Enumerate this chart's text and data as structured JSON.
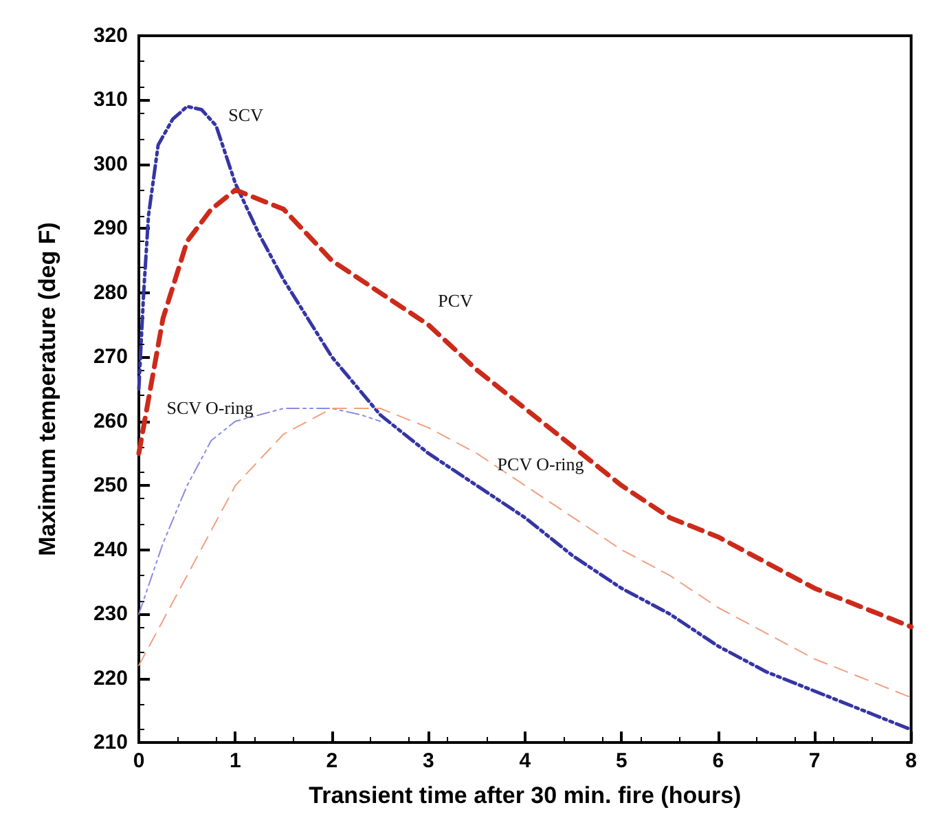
{
  "chart_data": {
    "type": "line",
    "xlabel": "Transient time after 30 min. fire (hours)",
    "ylabel": "Maximum temperature (deg F)",
    "xlim": [
      0,
      8
    ],
    "xticks": [
      0,
      1,
      2,
      3,
      4,
      5,
      6,
      7,
      8
    ],
    "ylim": [
      210,
      320
    ],
    "yticks": [
      210,
      220,
      230,
      240,
      250,
      260,
      270,
      280,
      290,
      300,
      310,
      320
    ],
    "grid": false,
    "series": [
      {
        "name": "SCV",
        "color": "#3535a5",
        "line_style": "dotted",
        "x": [
          0,
          0.05,
          0.1,
          0.2,
          0.35,
          0.5,
          0.65,
          0.8,
          1,
          1.25,
          1.5,
          2,
          2.5,
          3,
          3.5,
          4,
          4.5,
          5,
          5.5,
          6,
          6.5,
          7,
          7.5,
          8
        ],
        "values": [
          265,
          280,
          292,
          303,
          307,
          309,
          308.5,
          306,
          297,
          289,
          282,
          270,
          261,
          255,
          250,
          245,
          239,
          234,
          230,
          225,
          221,
          218,
          215,
          212
        ]
      },
      {
        "name": "PCV",
        "color": "#cc2a1a",
        "line_style": "dashed",
        "x": [
          0,
          0.25,
          0.5,
          0.75,
          1,
          1.5,
          2,
          2.5,
          3,
          3.5,
          4,
          4.5,
          5,
          5.5,
          6,
          6.5,
          7,
          7.5,
          8
        ],
        "values": [
          255,
          276,
          288,
          293,
          296,
          293,
          285,
          280,
          275,
          268,
          262,
          256,
          250,
          245,
          242,
          238,
          234,
          231,
          228
        ]
      },
      {
        "name": "SCV O-ring",
        "color": "#8a8ae0",
        "line_style": "dotted",
        "x": [
          0,
          0.25,
          0.5,
          0.75,
          1,
          1.5,
          2,
          2.3,
          2.5
        ],
        "values": [
          230,
          241,
          250,
          257,
          260,
          262,
          262,
          261,
          260
        ]
      },
      {
        "name": "PCV O-ring",
        "color": "#f0a080",
        "line_style": "dashed",
        "x": [
          0,
          0.5,
          1,
          1.5,
          2,
          2.5,
          3,
          3.5,
          4,
          4.5,
          5,
          5.5,
          6,
          6.5,
          7,
          7.5,
          8
        ],
        "values": [
          222,
          236,
          250,
          258,
          262,
          262,
          259,
          255,
          250,
          245,
          240,
          236,
          231,
          227,
          223,
          220,
          217
        ]
      }
    ]
  }
}
